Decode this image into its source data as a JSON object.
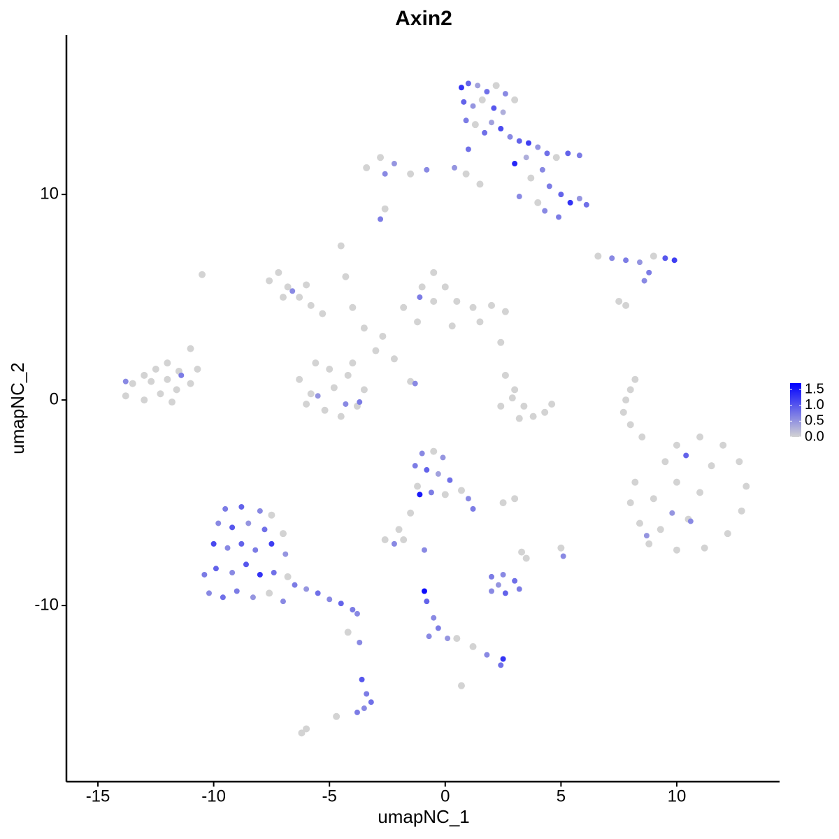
{
  "chart_data": {
    "type": "scatter",
    "title": "Axin2",
    "xlabel": "umapNC_1",
    "ylabel": "umapNC_2",
    "xlim": [
      -16.36,
      14.44
    ],
    "ylim": [
      -18.57,
      17.76
    ],
    "xticks": [
      -15,
      -10,
      -5,
      0,
      5,
      10
    ],
    "yticks": [
      -10,
      0,
      10
    ],
    "colorlim": [
      0,
      1.7
    ],
    "colorticks": [
      {
        "value": 0,
        "label": "0.0"
      },
      {
        "value": 0.5,
        "label": "0.5"
      },
      {
        "value": 1,
        "label": "1.0"
      },
      {
        "value": 1.5,
        "label": "1.5"
      }
    ],
    "low_color": "#d3d3d3",
    "high_color": "#0000ff",
    "grid": false,
    "x": [
      -13.5,
      -13,
      -12.5,
      -12,
      -11.5,
      -11,
      -13.8,
      -13,
      -12.3,
      -11.6,
      -11,
      -10.7,
      -12.7,
      -12,
      -11.8,
      -13.8,
      -11.4,
      -7.6,
      -7.2,
      -6.8,
      -6.3,
      -5.8,
      -7.0,
      -6.0,
      -5.3,
      -6.6,
      -6.3,
      -5.8,
      -5.2,
      -4.5,
      -3.8,
      -3.5,
      -4.2,
      -5.0,
      -5.6,
      -6.0,
      -4.8,
      -4.0,
      -5.5,
      -4.3,
      -3.7,
      -4.5,
      -4.3,
      -4.0,
      -3.5,
      -2.7,
      -2.2,
      -1.5,
      -1.3,
      -3.0,
      -1.8,
      -1.0,
      -0.5,
      0,
      0.5,
      1.2,
      2.0,
      2.6,
      1.5,
      0.3,
      -1.2,
      -0.5,
      -1.1,
      0.7,
      1.0,
      1.4,
      1.8,
      2.2,
      2.6,
      3.0,
      0.8,
      1.2,
      1.6,
      2.1,
      2.5,
      0.9,
      1.3,
      1.7,
      2.0,
      2.4,
      2.8,
      3.2,
      3.6,
      4.0,
      4.4,
      4.8,
      5.3,
      5.8,
      3.0,
      3.5,
      4.2,
      3.7,
      4.5,
      5.0,
      5.4,
      5.8,
      6.1,
      4.3,
      4.9,
      4.0,
      1.0,
      0.4,
      0.9,
      -0.8,
      -1.5,
      -2.2,
      -2.8,
      -3.4,
      -2.6,
      1.5,
      3.2,
      -2.8,
      -2.6,
      6.6,
      7.2,
      7.8,
      8.4,
      9.0,
      9.5,
      9.9,
      8.8,
      8.6,
      7.5,
      7.8,
      2.6,
      3.0,
      3.4,
      3.8,
      4.3,
      4.6,
      3.2,
      2.4,
      2.9,
      2.4,
      8.2,
      8.0,
      7.8,
      7.7,
      8.0,
      8.5,
      8.2,
      8.0,
      8.4,
      8.8,
      9.5,
      10.0,
      11.0,
      12.0,
      12.7,
      13.0,
      12.8,
      12.2,
      11.2,
      10.0,
      9.3,
      10.0,
      11.0,
      11.5,
      10.5,
      9.0,
      10.4,
      9.8,
      10.6,
      8.7,
      -1.0,
      -0.5,
      -0.1,
      -1.3,
      -0.8,
      -0.3,
      0.2,
      0.7,
      1.0,
      1.2,
      -1.2,
      -0.6,
      -1.1,
      0,
      -1.5,
      -2.0,
      -2.6,
      -2.2,
      -1.8,
      -0.9,
      2.5,
      3.0,
      5.0,
      5.1,
      3.5,
      -9.5,
      -8.8,
      -8.0,
      -7.5,
      -9.8,
      -9.2,
      -8.5,
      -7.8,
      -7.0,
      -10.0,
      -9.4,
      -8.8,
      -8.2,
      -7.5,
      -6.9,
      -10.4,
      -9.9,
      -9.2,
      -8.6,
      -8.0,
      -7.4,
      -6.8,
      -10.2,
      -9.6,
      -9.0,
      -8.3,
      -7.6,
      -7.0,
      -6.5,
      -6.0,
      -5.5,
      -5.0,
      -4.5,
      -4.0,
      -3.8,
      -4.2,
      -3.7,
      -3.6,
      -3.4,
      -3.2,
      -3.5,
      -3.8,
      -4.7,
      -6.0,
      -6.2,
      2.0,
      2.5,
      3.0,
      3.2,
      2.6,
      2.0,
      2.3,
      3.3,
      -0.9,
      -0.8,
      -0.5,
      -0.3,
      0.1,
      0.5,
      1.2,
      1.8,
      2.5,
      2.4,
      -0.7,
      0.7,
      -10.5
    ],
    "y": [
      0.8,
      1.2,
      1.5,
      1.8,
      1.4,
      2.5,
      0.2,
      0,
      0.3,
      0.5,
      0.8,
      1.5,
      0.9,
      1,
      -0.1,
      0.9,
      1.2,
      5.8,
      6.2,
      5.5,
      5.0,
      4.6,
      5.0,
      5.6,
      4.2,
      5.3,
      1.0,
      0.3,
      -0.5,
      -0.8,
      -0.3,
      0.5,
      1.2,
      1.5,
      1.8,
      -0.2,
      0.6,
      1.8,
      0.2,
      -0.2,
      -0.1,
      7.5,
      6.0,
      4.5,
      3.5,
      3.1,
      2.0,
      0.9,
      0.8,
      2.4,
      4.5,
      5.5,
      6.2,
      5.5,
      4.8,
      4.5,
      4.6,
      4.3,
      3.8,
      3.6,
      3.8,
      4.8,
      5.0,
      15.2,
      15.4,
      15.3,
      15.0,
      15.3,
      14.9,
      14.6,
      14.5,
      14.3,
      14.6,
      14.2,
      14.0,
      13.6,
      13.4,
      13.0,
      13.5,
      13.2,
      12.8,
      12.6,
      12.5,
      12.3,
      12.0,
      11.8,
      12.0,
      11.9,
      11.5,
      11.8,
      11.2,
      10.8,
      10.4,
      10.0,
      9.6,
      9.8,
      9.5,
      9.2,
      8.9,
      9.6,
      12.2,
      11.3,
      11.0,
      11.2,
      11.0,
      11.5,
      11.8,
      11.3,
      11.0,
      10.5,
      9.9,
      8.8,
      9.3,
      7.0,
      6.9,
      6.8,
      6.7,
      7.0,
      6.9,
      6.8,
      6.2,
      5.8,
      4.8,
      4.6,
      1.2,
      0.5,
      -0.3,
      -0.8,
      -0.6,
      -0.2,
      -0.9,
      -0.3,
      0.1,
      2.8,
      1.0,
      0.5,
      0,
      -0.6,
      -1.2,
      -1.8,
      -4.0,
      -5.0,
      -6.0,
      -7.0,
      -3.0,
      -2.2,
      -1.8,
      -2.2,
      -3.0,
      -4.2,
      -5.4,
      -6.5,
      -7.2,
      -7.3,
      -6.3,
      -4.0,
      -4.5,
      -3.2,
      -5.8,
      -4.8,
      -2.7,
      -5.5,
      -5.9,
      -6.6,
      -2.6,
      -2.5,
      -2.8,
      -3.2,
      -3.4,
      -3.6,
      -3.9,
      -4.4,
      -4.8,
      -5.3,
      -4.2,
      -4.5,
      -4.6,
      -4.6,
      -5.5,
      -6.3,
      -6.8,
      -7.0,
      -6.8,
      -7.3,
      -5.0,
      -4.8,
      -7.2,
      -7.6,
      -7.7,
      -5.3,
      -5.2,
      -5.4,
      -5.6,
      -6.0,
      -6.2,
      -6.0,
      -6.3,
      -6.5,
      -7.0,
      -7.2,
      -7.0,
      -7.3,
      -7.0,
      -7.5,
      -8.5,
      -8.2,
      -8.4,
      -8.0,
      -8.5,
      -8.4,
      -8.6,
      -9.4,
      -9.6,
      -9.3,
      -9.6,
      -9.4,
      -9.8,
      -9.0,
      -9.2,
      -9.4,
      -9.7,
      -9.9,
      -10.2,
      -10.4,
      -11.3,
      -11.8,
      -13.6,
      -14.3,
      -14.7,
      -15.0,
      -15.2,
      -15.4,
      -16.0,
      -16.2,
      -8.6,
      -8.5,
      -8.8,
      -9.2,
      -9.4,
      -9.3,
      -9.0,
      -7.4,
      -9.3,
      -9.8,
      -10.6,
      -11.1,
      -11.6,
      -11.6,
      -12.0,
      -12.4,
      -12.6,
      -12.9,
      -11.5,
      -13.9,
      6.1
    ],
    "values": [
      0,
      0,
      0,
      0,
      0,
      0,
      0,
      0,
      0,
      0,
      0,
      0,
      0,
      0,
      0,
      0.6,
      0.7,
      0,
      0,
      0,
      0,
      0,
      0,
      0,
      0,
      0.6,
      0,
      0,
      0,
      0,
      0,
      0,
      0,
      0,
      0,
      0,
      0,
      0,
      0.5,
      0.6,
      0.7,
      0,
      0,
      0,
      0,
      0,
      0,
      0,
      0.6,
      0,
      0,
      0,
      0,
      0,
      0,
      0,
      0,
      0,
      0,
      0,
      0,
      0,
      0.7,
      1.3,
      0.9,
      0.4,
      0.8,
      0,
      0.6,
      0,
      0.9,
      0.5,
      0,
      1.0,
      0.3,
      0.7,
      0,
      0.8,
      0.4,
      1.1,
      0.6,
      0.9,
      1.2,
      0.5,
      0.8,
      0,
      0.9,
      0.7,
      1.4,
      0.3,
      0.6,
      0,
      0.7,
      0.9,
      1.3,
      0.5,
      0.8,
      0.6,
      0.7,
      0,
      0.8,
      0.5,
      0,
      0.6,
      0,
      0.5,
      0,
      0,
      0.6,
      0,
      0.6,
      0.7,
      0,
      0,
      0.6,
      0.7,
      0.5,
      0,
      1.0,
      1.2,
      0.7,
      0.6,
      0,
      0,
      0,
      0,
      0,
      0,
      0,
      0,
      0,
      0,
      0,
      0,
      0,
      0,
      0,
      0,
      0,
      0,
      0,
      0,
      0,
      0,
      0,
      0,
      0,
      0,
      0,
      0,
      0,
      0,
      0,
      0,
      0,
      0,
      0,
      0,
      0,
      0,
      0.9,
      0.5,
      0.6,
      0.5,
      0.6,
      0,
      0.5,
      0.7,
      0.9,
      0.4,
      0.8,
      0,
      0.6,
      0.7,
      0,
      0.7,
      1.5,
      0,
      0,
      0,
      0,
      0.6,
      0,
      0.6,
      0,
      0,
      0,
      0.6,
      0,
      0.7,
      0.9,
      0.6,
      0,
      0.6,
      1.0,
      0.5,
      0.8,
      0,
      1.1,
      0.6,
      0.9,
      0.7,
      1.2,
      0.5,
      0.7,
      0.9,
      0.6,
      1.0,
      1.3,
      0.8,
      0,
      0.6,
      0.8,
      0.7,
      0.5,
      0,
      0.6,
      0.7,
      0.5,
      0.8,
      0.6,
      0.9,
      0.7,
      0.6,
      0,
      0.6,
      1.0,
      0.7,
      0.8,
      0.6,
      0.7,
      0,
      0,
      0,
      0.7,
      0.6,
      0.8,
      0.7,
      0.9,
      0.6,
      0.5,
      0,
      1.6,
      0.9,
      0.6,
      0.7,
      0.5,
      0,
      0,
      0.6,
      1.3,
      0.8,
      0.6,
      0,
      0
    ]
  }
}
